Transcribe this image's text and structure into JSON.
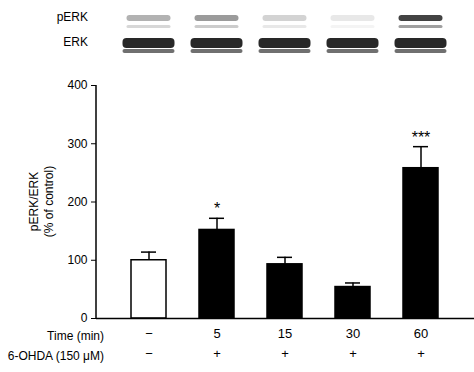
{
  "chart_data": {
    "type": "bar",
    "blot_labels": [
      "pERK",
      "ERK"
    ],
    "categories": [
      "−",
      "5",
      "15",
      "30",
      "60"
    ],
    "x_label": "Time (min)",
    "treatment": {
      "label": "6-OHDA (150 μM)",
      "values": [
        "−",
        "+",
        "+",
        "+",
        "+"
      ]
    },
    "y_label": [
      "pERK/ERK",
      "(% of control)"
    ],
    "values": [
      100,
      152,
      93,
      54,
      258
    ],
    "errors": [
      14,
      20,
      12,
      7,
      37
    ],
    "significance": [
      null,
      "*",
      null,
      null,
      "***"
    ],
    "colors": [
      "#ffffff",
      "#000000",
      "#000000",
      "#000000",
      "#000000"
    ],
    "ylim": [
      0,
      400
    ],
    "yticks": [
      0,
      100,
      200,
      300,
      400
    ]
  }
}
